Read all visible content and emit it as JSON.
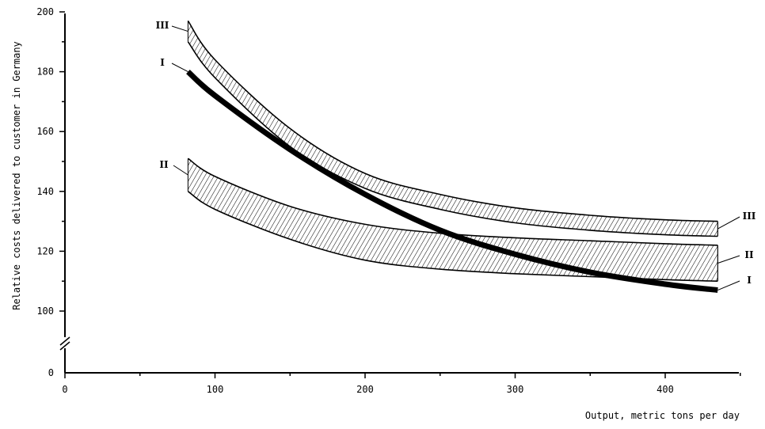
{
  "chart_data": {
    "type": "area",
    "title": "",
    "xlabel": "Output, metric tons per day",
    "ylabel": "Relative costs delivered to customer in Germany",
    "xlim": [
      0,
      450
    ],
    "ylim_display": [
      0,
      200
    ],
    "axis_break": "between 0 and 100 on y-axis",
    "grid": false,
    "x_ticks": [
      0,
      100,
      200,
      300,
      400
    ],
    "x_tick_labels": [
      "0",
      "100",
      "200",
      "300",
      "400"
    ],
    "y_ticks": [
      0,
      100,
      120,
      140,
      160,
      180,
      200
    ],
    "y_tick_labels": [
      "0",
      "100",
      "120",
      "140",
      "160",
      "180",
      "200"
    ],
    "series": [
      {
        "name": "I",
        "style": "thick-line",
        "x": [
          82,
          100,
          150,
          200,
          250,
          300,
          350,
          400,
          435
        ],
        "y": [
          180,
          172,
          154,
          139,
          127,
          119,
          113,
          109,
          107
        ]
      },
      {
        "name": "II",
        "style": "hatched-band",
        "x": [
          82,
          100,
          150,
          200,
          250,
          300,
          350,
          400,
          435
        ],
        "y_upper": [
          151,
          145,
          135,
          129,
          126,
          124.5,
          123.5,
          122.5,
          122
        ],
        "y_lower": [
          140,
          134,
          124,
          117,
          114,
          112.5,
          111.5,
          110.5,
          110
        ]
      },
      {
        "name": "III",
        "style": "hatched-band",
        "x": [
          82,
          100,
          150,
          200,
          250,
          300,
          350,
          400,
          435
        ],
        "y_upper": [
          197,
          184,
          161,
          146,
          139,
          134.5,
          132,
          130.5,
          130
        ],
        "y_lower": [
          190,
          178,
          155,
          141,
          134,
          129.5,
          127,
          125.5,
          125
        ]
      }
    ],
    "curve_labels": [
      {
        "text": "III",
        "series": "III",
        "side": "left"
      },
      {
        "text": "I",
        "series": "I",
        "side": "left"
      },
      {
        "text": "II",
        "series": "II",
        "side": "left"
      },
      {
        "text": "III",
        "series": "III",
        "side": "right"
      },
      {
        "text": "II",
        "series": "II",
        "side": "right"
      },
      {
        "text": "I",
        "series": "I",
        "side": "right"
      }
    ]
  }
}
